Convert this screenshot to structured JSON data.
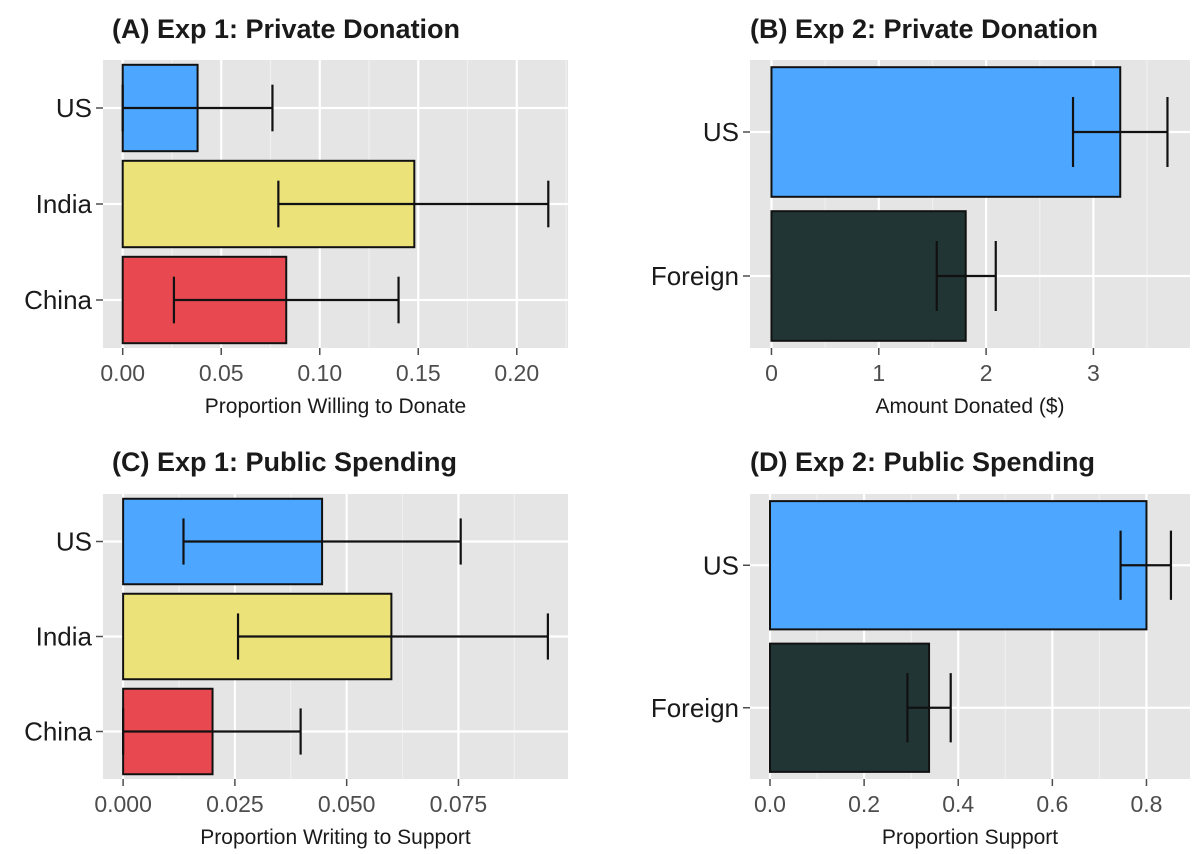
{
  "figure": {
    "colors": {
      "panel_bg": "#e5e5e5",
      "grid_major": "#ffffff",
      "grid_minor": "#f0f0f0",
      "text": "#1a1a1a",
      "tick_text": "#4d4d4d",
      "bar_outline": "#111111",
      "us": "#4da6ff",
      "india": "#ece27a",
      "china": "#e84850",
      "foreign": "#223535"
    }
  },
  "chart_data": [
    {
      "type": "bar",
      "orientation": "horizontal",
      "title": "(A) Exp 1: Private Donation",
      "xlabel": "Proportion Willing to Donate",
      "ylabel": "",
      "categories": [
        "US",
        "India",
        "China"
      ],
      "values": [
        0.038,
        0.148,
        0.083
      ],
      "error_low": [
        0.0,
        0.079,
        0.026
      ],
      "error_high": [
        0.076,
        0.216,
        0.14
      ],
      "bar_colors": [
        "#4da6ff",
        "#ece27a",
        "#e84850"
      ],
      "xlim": [
        -0.01,
        0.226
      ],
      "xticks": [
        0.0,
        0.05,
        0.1,
        0.15,
        0.2
      ],
      "xtick_labels": [
        "0.00",
        "0.05",
        "0.10",
        "0.15",
        "0.20"
      ],
      "grid": true,
      "legend": "none"
    },
    {
      "type": "bar",
      "orientation": "horizontal",
      "title": "(B) Exp 2: Private Donation",
      "xlabel": "Amount Donated ($)",
      "ylabel": "",
      "categories": [
        "US",
        "Foreign"
      ],
      "values": [
        3.25,
        1.81
      ],
      "error_low": [
        2.81,
        1.54
      ],
      "error_high": [
        3.69,
        2.09
      ],
      "bar_colors": [
        "#4da6ff",
        "#223535"
      ],
      "xlim": [
        -0.2,
        3.9
      ],
      "xticks": [
        0,
        1,
        2,
        3
      ],
      "xtick_labels": [
        "0",
        "1",
        "2",
        "3"
      ],
      "grid": true,
      "legend": "none"
    },
    {
      "type": "bar",
      "orientation": "horizontal",
      "title": "(C) Exp 1: Public Spending",
      "xlabel": "Proportion Writing to Support",
      "ylabel": "",
      "categories": [
        "US",
        "India",
        "China"
      ],
      "values": [
        0.0445,
        0.06,
        0.02
      ],
      "error_low": [
        0.0135,
        0.0257,
        0.0
      ],
      "error_high": [
        0.0755,
        0.095,
        0.0397
      ],
      "bar_colors": [
        "#4da6ff",
        "#ece27a",
        "#e84850"
      ],
      "xlim": [
        -0.0045,
        0.0995
      ],
      "xticks": [
        0.0,
        0.025,
        0.05,
        0.075
      ],
      "xtick_labels": [
        "0.000",
        "0.025",
        "0.050",
        "0.075"
      ],
      "grid": true,
      "legend": "none"
    },
    {
      "type": "bar",
      "orientation": "horizontal",
      "title": "(D) Exp 2: Public Spending",
      "xlabel": "Proportion Support",
      "ylabel": "",
      "categories": [
        "US",
        "Foreign"
      ],
      "values": [
        0.8,
        0.338
      ],
      "error_low": [
        0.745,
        0.292
      ],
      "error_high": [
        0.852,
        0.384
      ],
      "bar_colors": [
        "#4da6ff",
        "#223535"
      ],
      "xlim": [
        -0.0425,
        0.8925
      ],
      "xticks": [
        0.0,
        0.2,
        0.4,
        0.6,
        0.8
      ],
      "xtick_labels": [
        "0.0",
        "0.2",
        "0.4",
        "0.6",
        "0.8"
      ],
      "grid": true,
      "legend": "none"
    }
  ]
}
